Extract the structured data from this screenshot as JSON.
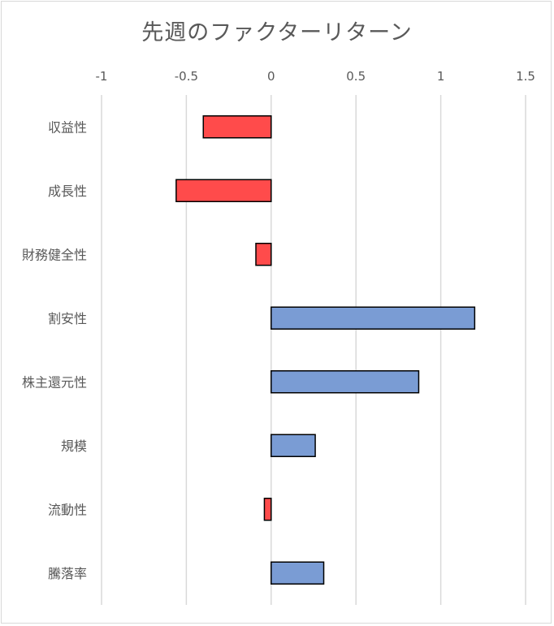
{
  "chart_data": {
    "type": "bar",
    "orientation": "horizontal",
    "title": "先週のファクターリターン",
    "categories": [
      "収益性",
      "成長性",
      "財務健全性",
      "割安性",
      "株主還元性",
      "規模",
      "流動性",
      "騰落率"
    ],
    "values": [
      -0.4,
      -0.56,
      -0.09,
      1.2,
      0.87,
      0.26,
      -0.04,
      0.31
    ],
    "xlim": [
      -1,
      1.5
    ],
    "x_ticks": [
      -1,
      -0.5,
      0,
      0.5,
      1,
      1.5
    ],
    "x_tick_labels": [
      "-1",
      "-0.5",
      "0",
      "0.5",
      "1",
      "1.5"
    ],
    "x_axis_position": "top",
    "grid": true,
    "legend": "none",
    "colors": {
      "negative": "#ff4b4b",
      "positive": "#7a9cd4",
      "bar_outline": "#000000",
      "gridline": "#d9d9d9",
      "text": "#595959"
    }
  }
}
